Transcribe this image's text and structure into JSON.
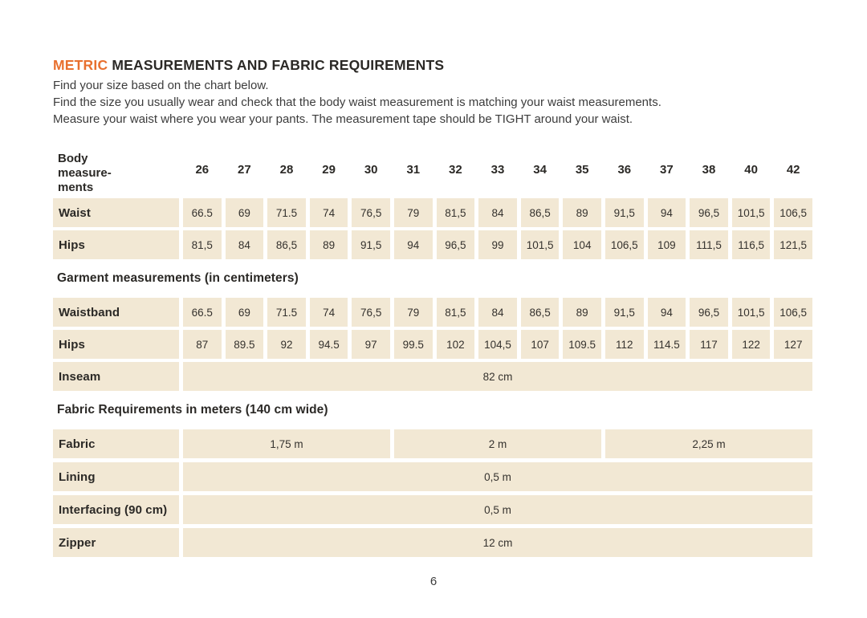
{
  "colors": {
    "accent": "#E8702F",
    "cell_bg": "#F2E8D4",
    "text": "#2B2926"
  },
  "header": {
    "title_accent": "METRIC",
    "title_rest": "MEASUREMENTS AND FABRIC REQUIREMENTS",
    "intro_lines": [
      "Find your size based on the chart below.",
      "Find the size you usually wear and check that the body waist measurement is matching your waist measurements.",
      "Measure your waist where you wear your pants. The measurement tape should be TIGHT around your waist."
    ]
  },
  "size_table": {
    "corner_label": "Body measure-ments",
    "sizes": [
      "26",
      "27",
      "28",
      "29",
      "30",
      "31",
      "32",
      "33",
      "34",
      "35",
      "36",
      "37",
      "38",
      "40",
      "42"
    ],
    "rows": [
      {
        "label": "Waist",
        "values": [
          "66.5",
          "69",
          "71.5",
          "74",
          "76,5",
          "79",
          "81,5",
          "84",
          "86,5",
          "89",
          "91,5",
          "94",
          "96,5",
          "101,5",
          "106,5"
        ]
      },
      {
        "label": "Hips",
        "values": [
          "81,5",
          "84",
          "86,5",
          "89",
          "91,5",
          "94",
          "96,5",
          "99",
          "101,5",
          "104",
          "106,5",
          "109",
          "111,5",
          "116,5",
          "121,5"
        ]
      }
    ]
  },
  "garment": {
    "heading": "Garment measurements (in centimeters)",
    "rows": [
      {
        "label": "Waistband",
        "values": [
          "66.5",
          "69",
          "71.5",
          "74",
          "76,5",
          "79",
          "81,5",
          "84",
          "86,5",
          "89",
          "91,5",
          "94",
          "96,5",
          "101,5",
          "106,5"
        ]
      },
      {
        "label": "Hips",
        "values": [
          "87",
          "89.5",
          "92",
          "94.5",
          "97",
          "99.5",
          "102",
          "104,5",
          "107",
          "109.5",
          "112",
          "114.5",
          "117",
          "122",
          "127"
        ]
      }
    ],
    "span_rows": [
      {
        "label": "Inseam",
        "value": "82 cm"
      }
    ]
  },
  "fabric": {
    "heading": "Fabric Requirements in meters (140 cm wide)",
    "fabric_row": {
      "label": "Fabric",
      "values": [
        "1,75 m",
        "2 m",
        "2,25 m"
      ]
    },
    "span_rows": [
      {
        "label": "Lining",
        "value": "0,5 m"
      },
      {
        "label": "Interfacing (90 cm)",
        "value": "0,5 m"
      },
      {
        "label": "Zipper",
        "value": "12 cm"
      }
    ]
  },
  "footer": {
    "page_number": "6"
  }
}
